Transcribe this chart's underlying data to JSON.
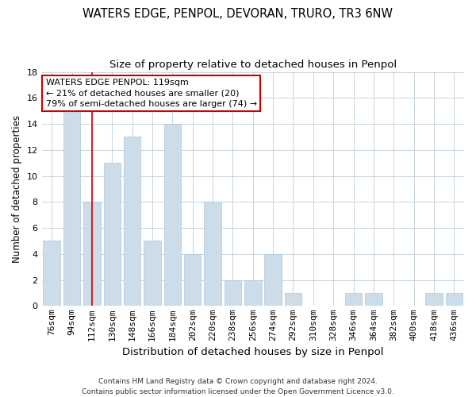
{
  "title": "WATERS EDGE, PENPOL, DEVORAN, TRURO, TR3 6NW",
  "subtitle": "Size of property relative to detached houses in Penpol",
  "xlabel": "Distribution of detached houses by size in Penpol",
  "ylabel": "Number of detached properties",
  "footer_line1": "Contains HM Land Registry data © Crown copyright and database right 2024.",
  "footer_line2": "Contains public sector information licensed under the Open Government Licence v3.0.",
  "bar_labels": [
    "76sqm",
    "94sqm",
    "112sqm",
    "130sqm",
    "148sqm",
    "166sqm",
    "184sqm",
    "202sqm",
    "220sqm",
    "238sqm",
    "256sqm",
    "274sqm",
    "292sqm",
    "310sqm",
    "328sqm",
    "346sqm",
    "364sqm",
    "382sqm",
    "400sqm",
    "418sqm",
    "436sqm"
  ],
  "bar_values": [
    5,
    15,
    8,
    11,
    13,
    5,
    14,
    4,
    8,
    2,
    2,
    4,
    1,
    0,
    0,
    1,
    1,
    0,
    0,
    1,
    1
  ],
  "bar_color": "#ccdce8",
  "bar_edge_color": "#aec8dc",
  "grid_color": "#c8d4dc",
  "reference_line_x": 2,
  "reference_line_color": "#cc0000",
  "annotation_text": "WATERS EDGE PENPOL: 119sqm\n← 21% of detached houses are smaller (20)\n79% of semi-detached houses are larger (74) →",
  "annotation_box_color": "#ffffff",
  "annotation_box_edge_color": "#cc0000",
  "ylim": [
    0,
    18
  ],
  "yticks": [
    0,
    2,
    4,
    6,
    8,
    10,
    12,
    14,
    16,
    18
  ],
  "title_fontsize": 10.5,
  "subtitle_fontsize": 9.5,
  "annotation_fontsize": 8.0,
  "xlabel_fontsize": 9.5,
  "ylabel_fontsize": 8.5,
  "tick_fontsize": 8.0,
  "footer_fontsize": 6.5,
  "bg_color": "#ffffff"
}
